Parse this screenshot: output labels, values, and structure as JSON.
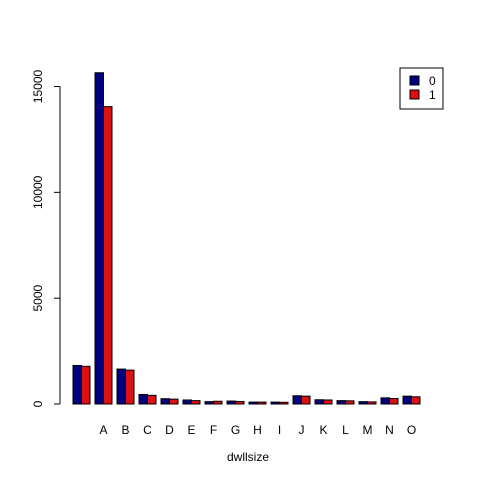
{
  "chart_data": {
    "type": "bar",
    "categories": [
      "",
      "A",
      "B",
      "C",
      "D",
      "E",
      "F",
      "G",
      "H",
      "I",
      "J",
      "K",
      "L",
      "M",
      "N",
      "O"
    ],
    "series": [
      {
        "name": "0",
        "color": "#00007f",
        "values": [
          1820,
          15650,
          1650,
          450,
          250,
          190,
          110,
          140,
          90,
          90,
          390,
          200,
          160,
          110,
          290,
          370
        ]
      },
      {
        "name": "1",
        "color": "#dd1111",
        "values": [
          1780,
          14050,
          1600,
          410,
          230,
          160,
          130,
          120,
          90,
          80,
          370,
          190,
          150,
          100,
          260,
          340
        ]
      }
    ],
    "xlabel": "dwllsize",
    "ylabel": "",
    "ylim": [
      0,
      16300
    ],
    "yticks": [
      0,
      5000,
      10000,
      15000
    ],
    "legend_position": "top-right"
  }
}
